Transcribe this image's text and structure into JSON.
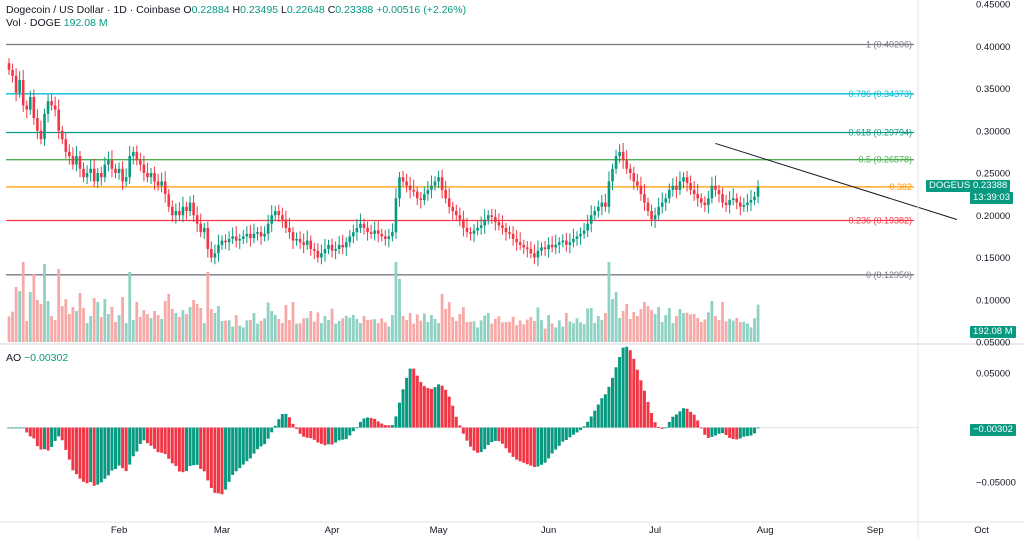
{
  "legend": {
    "symbol": "Dogecoin / US Dollar · 1D · Coinbase",
    "open_label": "O",
    "open": "0.22884",
    "high_label": "H",
    "high": "0.23495",
    "low_label": "L",
    "low": "0.22648",
    "close_label": "C",
    "close": "0.23388",
    "change": "+0.00516 (+2.26%)",
    "vol_label": "Vol · DOGE",
    "vol_value": "192.08 M"
  },
  "ao_legend": {
    "label": "AO",
    "value": "−0.00302"
  },
  "price_tag": {
    "ticker": "DOGEUSD",
    "price": "0.23388",
    "countdown": "13:39:03",
    "color": "#089981"
  },
  "vol_tag": {
    "value": "192.08 M",
    "color": "#089981"
  },
  "ao_tag": {
    "value": "−0.00302",
    "color": "#089981"
  },
  "fib_levels": [
    {
      "label": "1 (0.40206)",
      "value": 0.40206,
      "color": "#787b86"
    },
    {
      "label": "0.786 (0.34373)",
      "value": 0.34373,
      "color": "#00bcd4"
    },
    {
      "label": "0.618 (0.29794)",
      "value": 0.29794,
      "color": "#089981"
    },
    {
      "label": "0.5 (0.26578)",
      "value": 0.26578,
      "color": "#4caf50"
    },
    {
      "label": "0.382",
      "value": 0.2336,
      "color": "#ff9800"
    },
    {
      "label": "0.236 (0.19382)",
      "value": 0.19382,
      "color": "#f23645"
    },
    {
      "label": "0 (0.12950)",
      "value": 0.1295,
      "color": "#787b86"
    }
  ],
  "price_axis": [
    "0.45000",
    "0.40000",
    "0.35000",
    "0.30000",
    "0.25000",
    "0.20000",
    "0.15000",
    "0.10000",
    "0.05000"
  ],
  "ao_axis": [
    "0.05000",
    "−0.05000"
  ],
  "months": [
    "Feb",
    "Mar",
    "Apr",
    "May",
    "Jun",
    "Jul",
    "Aug",
    "Sep",
    "Oct"
  ],
  "colors": {
    "up": "#089981",
    "down": "#f23645",
    "vol_up": "#8fd1c3",
    "vol_down": "#f7a9a7",
    "trendline": "#131722"
  },
  "trendline": {
    "start_date": "Jul 18",
    "start_price": 0.285,
    "end_date": "Sep 25",
    "end_price": 0.195
  },
  "chart_data": {
    "type": "candlestick",
    "title": "Dogecoin / US Dollar · 1D · Coinbase",
    "ylim": [
      0.05,
      0.45
    ],
    "start_date": "Jan 01",
    "close": [
      0.372,
      0.365,
      0.345,
      0.36,
      0.33,
      0.325,
      0.34,
      0.315,
      0.3,
      0.29,
      0.32,
      0.335,
      0.33,
      0.325,
      0.3,
      0.29,
      0.275,
      0.27,
      0.26,
      0.27,
      0.255,
      0.245,
      0.25,
      0.255,
      0.24,
      0.25,
      0.245,
      0.26,
      0.265,
      0.255,
      0.25,
      0.255,
      0.24,
      0.245,
      0.27,
      0.275,
      0.265,
      0.26,
      0.25,
      0.245,
      0.25,
      0.24,
      0.235,
      0.24,
      0.225,
      0.21,
      0.2,
      0.205,
      0.2,
      0.21,
      0.205,
      0.215,
      0.2,
      0.19,
      0.18,
      0.185,
      0.16,
      0.15,
      0.155,
      0.165,
      0.17,
      0.168,
      0.172,
      0.175,
      0.17,
      0.172,
      0.175,
      0.178,
      0.173,
      0.178,
      0.18,
      0.175,
      0.178,
      0.19,
      0.2,
      0.205,
      0.2,
      0.195,
      0.185,
      0.18,
      0.17,
      0.172,
      0.168,
      0.165,
      0.17,
      0.16,
      0.158,
      0.15,
      0.155,
      0.16,
      0.165,
      0.158,
      0.16,
      0.165,
      0.162,
      0.168,
      0.175,
      0.18,
      0.185,
      0.19,
      0.185,
      0.18,
      0.178,
      0.182,
      0.178,
      0.175,
      0.172,
      0.175,
      0.18,
      0.22,
      0.245,
      0.24,
      0.235,
      0.23,
      0.228,
      0.22,
      0.218,
      0.225,
      0.23,
      0.235,
      0.24,
      0.245,
      0.23,
      0.22,
      0.21,
      0.205,
      0.2,
      0.195,
      0.185,
      0.18,
      0.178,
      0.182,
      0.185,
      0.188,
      0.195,
      0.2,
      0.198,
      0.192,
      0.188,
      0.185,
      0.18,
      0.178,
      0.172,
      0.168,
      0.165,
      0.162,
      0.16,
      0.155,
      0.15,
      0.158,
      0.162,
      0.16,
      0.165,
      0.162,
      0.165,
      0.168,
      0.17,
      0.165,
      0.168,
      0.172,
      0.175,
      0.178,
      0.182,
      0.19,
      0.2,
      0.205,
      0.21,
      0.215,
      0.21,
      0.24,
      0.255,
      0.27,
      0.275,
      0.265,
      0.255,
      0.25,
      0.24,
      0.235,
      0.225,
      0.215,
      0.205,
      0.195,
      0.2,
      0.21,
      0.215,
      0.22,
      0.23,
      0.235,
      0.23,
      0.24,
      0.245,
      0.238,
      0.23,
      0.225,
      0.22,
      0.215,
      0.212,
      0.22,
      0.235,
      0.23,
      0.225,
      0.215,
      0.212,
      0.218,
      0.22,
      0.215,
      0.21,
      0.212,
      0.215,
      0.218,
      0.222,
      0.234
    ],
    "volume_relative": "proportional",
    "ao_ylim": [
      -0.085,
      0.075
    ]
  }
}
